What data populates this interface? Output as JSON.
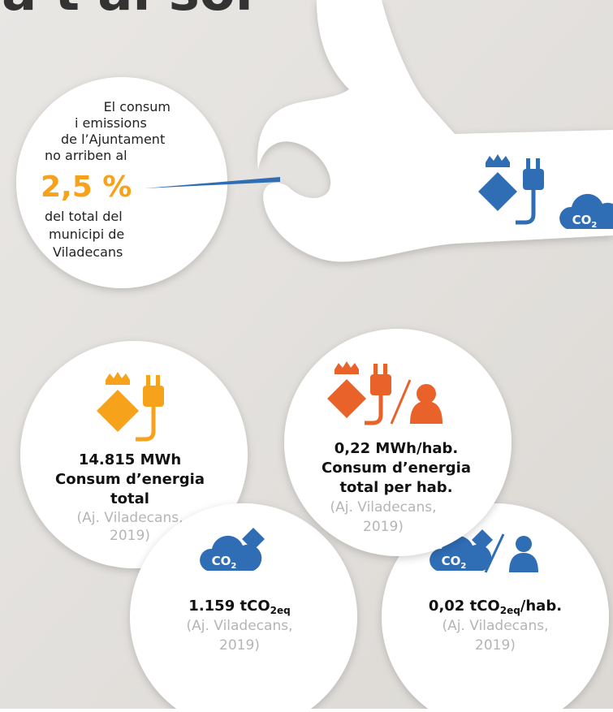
{
  "header": {
    "title": "la t al sol"
  },
  "callout": {
    "lines": [
      "El consum",
      "i emissions",
      "de l’Ajuntament",
      "no arriben al"
    ],
    "highlight": "2,5 %",
    "lines_after": [
      "del total del",
      "municipi de",
      "Viladecans"
    ]
  },
  "icon_labels": {
    "co": "CO",
    "sub": "2"
  },
  "stats": [
    {
      "lines": [
        "14.815 MWh",
        "Consum d’energia",
        "total"
      ],
      "source": [
        "(Aj. Viladecans,",
        "2019)"
      ]
    },
    {
      "lines": [
        "0,22 MWh/hab.",
        "Consum d’energia",
        "total per hab."
      ],
      "source": [
        "(Aj. Viladecans,",
        "2019)"
      ]
    },
    {
      "value": "1.159 tCO",
      "sub": "2eq",
      "source": [
        "(Aj. Viladecans,",
        "2019)"
      ]
    },
    {
      "value": "0,02 tCO",
      "sub": "2eq",
      "suffix": "/hab.",
      "source": [
        "(Aj. Viladecans,",
        "2019)"
      ]
    }
  ]
}
